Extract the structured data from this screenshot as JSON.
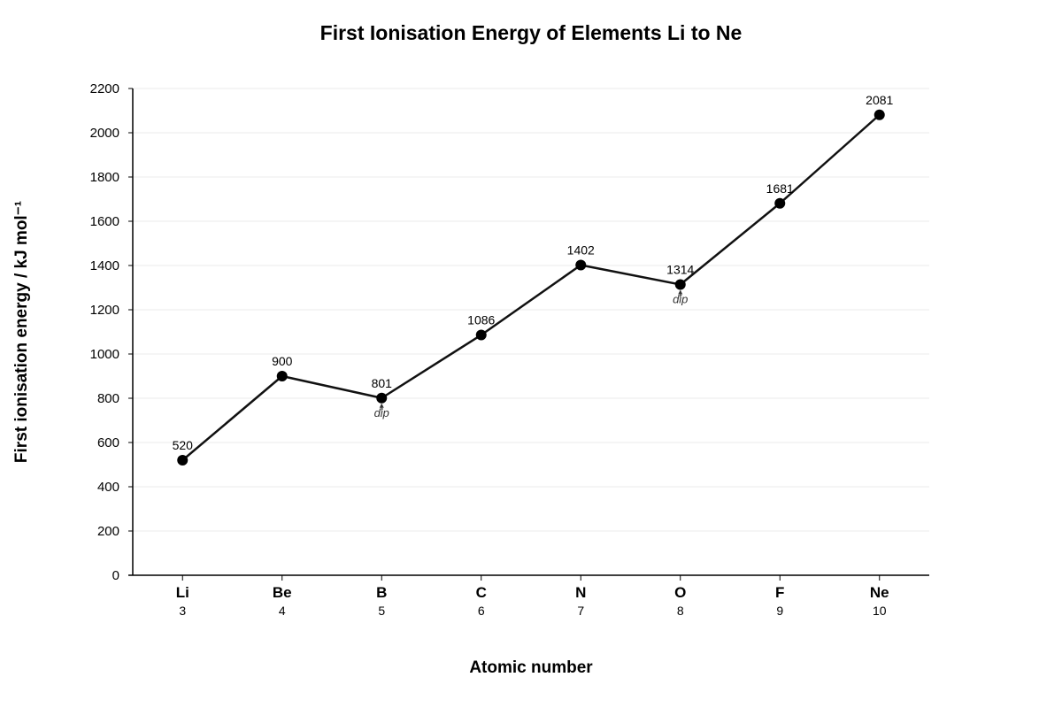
{
  "chart_data": {
    "type": "line",
    "title": "First Ionisation Energy of Elements Li to Ne",
    "xlabel": "Atomic number",
    "ylabel": "First ionisation energy / kJ mol⁻¹",
    "categories": [
      "Li",
      "Be",
      "B",
      "C",
      "N",
      "O",
      "F",
      "Ne"
    ],
    "atomic_numbers": [
      "3",
      "4",
      "5",
      "6",
      "7",
      "8",
      "9",
      "10"
    ],
    "values": [
      520,
      900,
      801,
      1086,
      1402,
      1314,
      1681,
      2081
    ],
    "data_labels": [
      "520",
      "900",
      "801",
      "1086",
      "1402",
      "1314",
      "1681",
      "2081"
    ],
    "ylim": [
      0,
      2200
    ],
    "yticks": [
      0,
      200,
      400,
      600,
      800,
      1000,
      1200,
      1400,
      1600,
      1800,
      2000,
      2200
    ],
    "grid": true,
    "annotations": [
      {
        "category": "B",
        "text": "dip"
      },
      {
        "category": "O",
        "text": "dip"
      }
    ],
    "colors": {
      "line": "#111111",
      "marker": "#000000",
      "grid": "#ebebeb",
      "axis": "#000000"
    }
  }
}
